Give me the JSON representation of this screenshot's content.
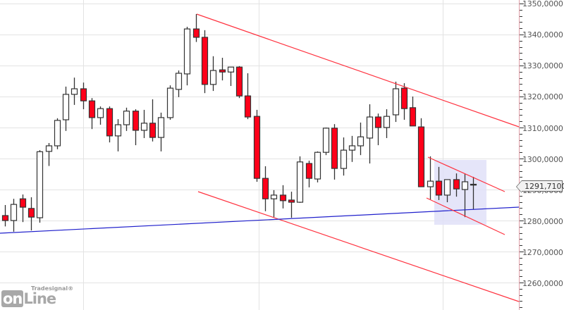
{
  "branding": {
    "brand": "Tradesignal®",
    "logo_part1": "on",
    "logo_part2": "Line"
  },
  "price_tag": "1291,7100",
  "colors": {
    "bull_fill": "#ffffff",
    "bear_fill": "#ff0019",
    "candle_outline": "#333333",
    "trend_channel": "#ff3340",
    "support_line": "#2020cc",
    "highlight_box": "#e0e0f8",
    "grid": "#e3e3e3",
    "axis": "#e0a0a8"
  },
  "chart_data": {
    "type": "candlestick",
    "title": "",
    "xlabel": "",
    "ylabel": "",
    "ylim": [
      1252.5,
      1351
    ],
    "grid": true,
    "legend": "none",
    "y_ticks": [
      "1350,0000",
      "1340,0000",
      "1330,0000",
      "1320,0000",
      "1310,0000",
      "1300,0000",
      "1290,0000",
      "1280,0000",
      "1270,0000",
      "1260,0000"
    ],
    "last_price": "1291,7100",
    "candles": [
      {
        "o": 1281.6,
        "h": 1285.0,
        "l": 1278.1,
        "c": 1280.0
      },
      {
        "o": 1280.0,
        "h": 1287.0,
        "l": 1276.4,
        "c": 1285.2
      },
      {
        "o": 1287.0,
        "h": 1288.4,
        "l": 1279.5,
        "c": 1284.3
      },
      {
        "o": 1283.9,
        "h": 1287.5,
        "l": 1276.8,
        "c": 1281.1
      },
      {
        "o": 1280.9,
        "h": 1302.7,
        "l": 1279.3,
        "c": 1302.2
      },
      {
        "o": 1302.3,
        "h": 1305.0,
        "l": 1297.6,
        "c": 1304.1
      },
      {
        "o": 1304.1,
        "h": 1313.0,
        "l": 1303.0,
        "c": 1312.3
      },
      {
        "o": 1312.5,
        "h1": 0,
        "h": 1323.2,
        "l": 1308.9,
        "c": 1320.7
      },
      {
        "o": 1320.7,
        "h": 1326.1,
        "l": 1317.3,
        "c": 1322.5
      },
      {
        "o": 1322.5,
        "h": 1324.5,
        "l": 1315.9,
        "c": 1318.6
      },
      {
        "o": 1318.6,
        "h": 1319.5,
        "l": 1309.5,
        "c": 1313.2
      },
      {
        "o": 1313.2,
        "h": 1316.8,
        "l": 1310.9,
        "c": 1316.1
      },
      {
        "o": 1316.1,
        "h": 1316.8,
        "l": 1305.2,
        "c": 1307.3
      },
      {
        "o": 1307.3,
        "h": 1312.7,
        "l": 1302.3,
        "c": 1310.9
      },
      {
        "o": 1310.9,
        "h": 1316.4,
        "l": 1308.9,
        "c": 1315.3
      },
      {
        "o": 1315.3,
        "h": 1315.9,
        "l": 1304.3,
        "c": 1309.1
      },
      {
        "o": 1309.1,
        "h": 1315.7,
        "l": 1306.6,
        "c": 1311.4
      },
      {
        "o": 1311.4,
        "h": 1319.1,
        "l": 1305.5,
        "c": 1306.8
      },
      {
        "o": 1306.8,
        "h": 1314.8,
        "l": 1302.3,
        "c": 1313.2
      },
      {
        "o": 1313.2,
        "h": 1323.6,
        "l": 1312.5,
        "c": 1322.7
      },
      {
        "o": 1322.3,
        "h": 1328.4,
        "l": 1319.8,
        "c": 1327.5
      },
      {
        "o": 1327.3,
        "h": 1342.5,
        "l": 1323.6,
        "c": 1341.8
      },
      {
        "o": 1341.8,
        "h": 1346.6,
        "l": 1337.6,
        "c": 1339.1
      },
      {
        "o": 1339.1,
        "h": 1341.4,
        "l": 1321.1,
        "c": 1323.9
      },
      {
        "o": 1323.9,
        "h": 1333.0,
        "l": 1321.8,
        "c": 1328.4
      },
      {
        "o": 1328.6,
        "h": 1332.5,
        "l": 1325.2,
        "c": 1327.9
      },
      {
        "o": 1327.9,
        "h": 1329.5,
        "l": 1323.4,
        "c": 1329.5
      },
      {
        "o": 1329.5,
        "h": 1329.8,
        "l": 1319.5,
        "c": 1320.2
      },
      {
        "o": 1320.2,
        "h": 1327.5,
        "l": 1312.7,
        "c": 1313.4
      },
      {
        "o": 1313.6,
        "h": 1315.7,
        "l": 1292.5,
        "c": 1293.6
      },
      {
        "o": 1293.6,
        "h": 1297.5,
        "l": 1283.0,
        "c": 1287.0
      },
      {
        "o": 1287.0,
        "h": 1289.8,
        "l": 1281.1,
        "c": 1288.2
      },
      {
        "o": 1288.2,
        "h": 1291.4,
        "l": 1283.9,
        "c": 1286.4
      },
      {
        "o": 1286.6,
        "h": 1289.3,
        "l": 1280.9,
        "c": 1285.9
      },
      {
        "o": 1285.9,
        "h": 1300.7,
        "l": 1285.7,
        "c": 1298.9
      },
      {
        "o": 1298.4,
        "h": 1299.3,
        "l": 1290.7,
        "c": 1293.6
      },
      {
        "o": 1293.4,
        "h": 1302.3,
        "l": 1292.3,
        "c": 1302.0
      },
      {
        "o": 1302.0,
        "h": 1310.0,
        "l": 1301.1,
        "c": 1309.8
      },
      {
        "o": 1309.8,
        "h": 1311.1,
        "l": 1293.2,
        "c": 1296.8
      },
      {
        "o": 1296.8,
        "h": 1306.8,
        "l": 1294.5,
        "c": 1302.7
      },
      {
        "o": 1302.7,
        "h": 1307.3,
        "l": 1298.9,
        "c": 1304.1
      },
      {
        "o": 1304.1,
        "h": 1311.6,
        "l": 1301.1,
        "c": 1307.0
      },
      {
        "o": 1306.6,
        "h": 1317.5,
        "l": 1298.4,
        "c": 1313.4
      },
      {
        "o": 1313.4,
        "h": 1314.5,
        "l": 1304.3,
        "c": 1310.0
      },
      {
        "o": 1310.0,
        "h": 1315.9,
        "l": 1306.6,
        "c": 1313.6
      },
      {
        "o": 1314.1,
        "h": 1324.8,
        "l": 1311.8,
        "c": 1322.5
      },
      {
        "o": 1322.7,
        "h": 1324.3,
        "l": 1312.5,
        "c": 1316.1
      },
      {
        "o": 1316.4,
        "h": 1320.0,
        "l": 1310.5,
        "c": 1310.5
      },
      {
        "o": 1310.2,
        "h": 1313.0,
        "l": 1290.9,
        "c": 1290.9
      },
      {
        "o": 1290.9,
        "h": 1300.7,
        "l": 1286.8,
        "c": 1292.7
      },
      {
        "o": 1292.7,
        "h": 1297.3,
        "l": 1286.6,
        "c": 1288.2
      },
      {
        "o": 1288.2,
        "h": 1293.2,
        "l": 1285.9,
        "c": 1293.2
      },
      {
        "o": 1293.2,
        "h": 1295.2,
        "l": 1287.7,
        "c": 1290.2
      },
      {
        "o": 1290.0,
        "h": 1295.0,
        "l": 1281.1,
        "c": 1292.5
      },
      {
        "o": 1291.7,
        "h": 1294.1,
        "l": 1283.6,
        "c": 1291.7
      }
    ],
    "annotations": [
      {
        "type": "trendline",
        "name": "upper-channel-main",
        "color": "#ff3340",
        "from": [
          279,
          20
        ],
        "to": [
          736,
          180
        ]
      },
      {
        "type": "trendline",
        "name": "lower-channel-main",
        "color": "#ff3340",
        "from": [
          281,
          272
        ],
        "to": [
          736,
          428
        ]
      },
      {
        "type": "trendline",
        "name": "support-line",
        "color": "#2020cc",
        "from": [
          0,
          331
        ],
        "to": [
          736,
          294
        ]
      },
      {
        "type": "trendline",
        "name": "flag-upper",
        "color": "#ff3340",
        "from": [
          607,
          223
        ],
        "to": [
          716,
          272
        ]
      },
      {
        "type": "trendline",
        "name": "flag-lower",
        "color": "#ff3340",
        "from": [
          605,
          281
        ],
        "to": [
          716,
          333
        ]
      },
      {
        "type": "rect",
        "name": "consolidation-box",
        "color": "#e0e0f8",
        "from": [
          616,
          227
        ],
        "to": [
          690,
          319
        ]
      }
    ]
  }
}
